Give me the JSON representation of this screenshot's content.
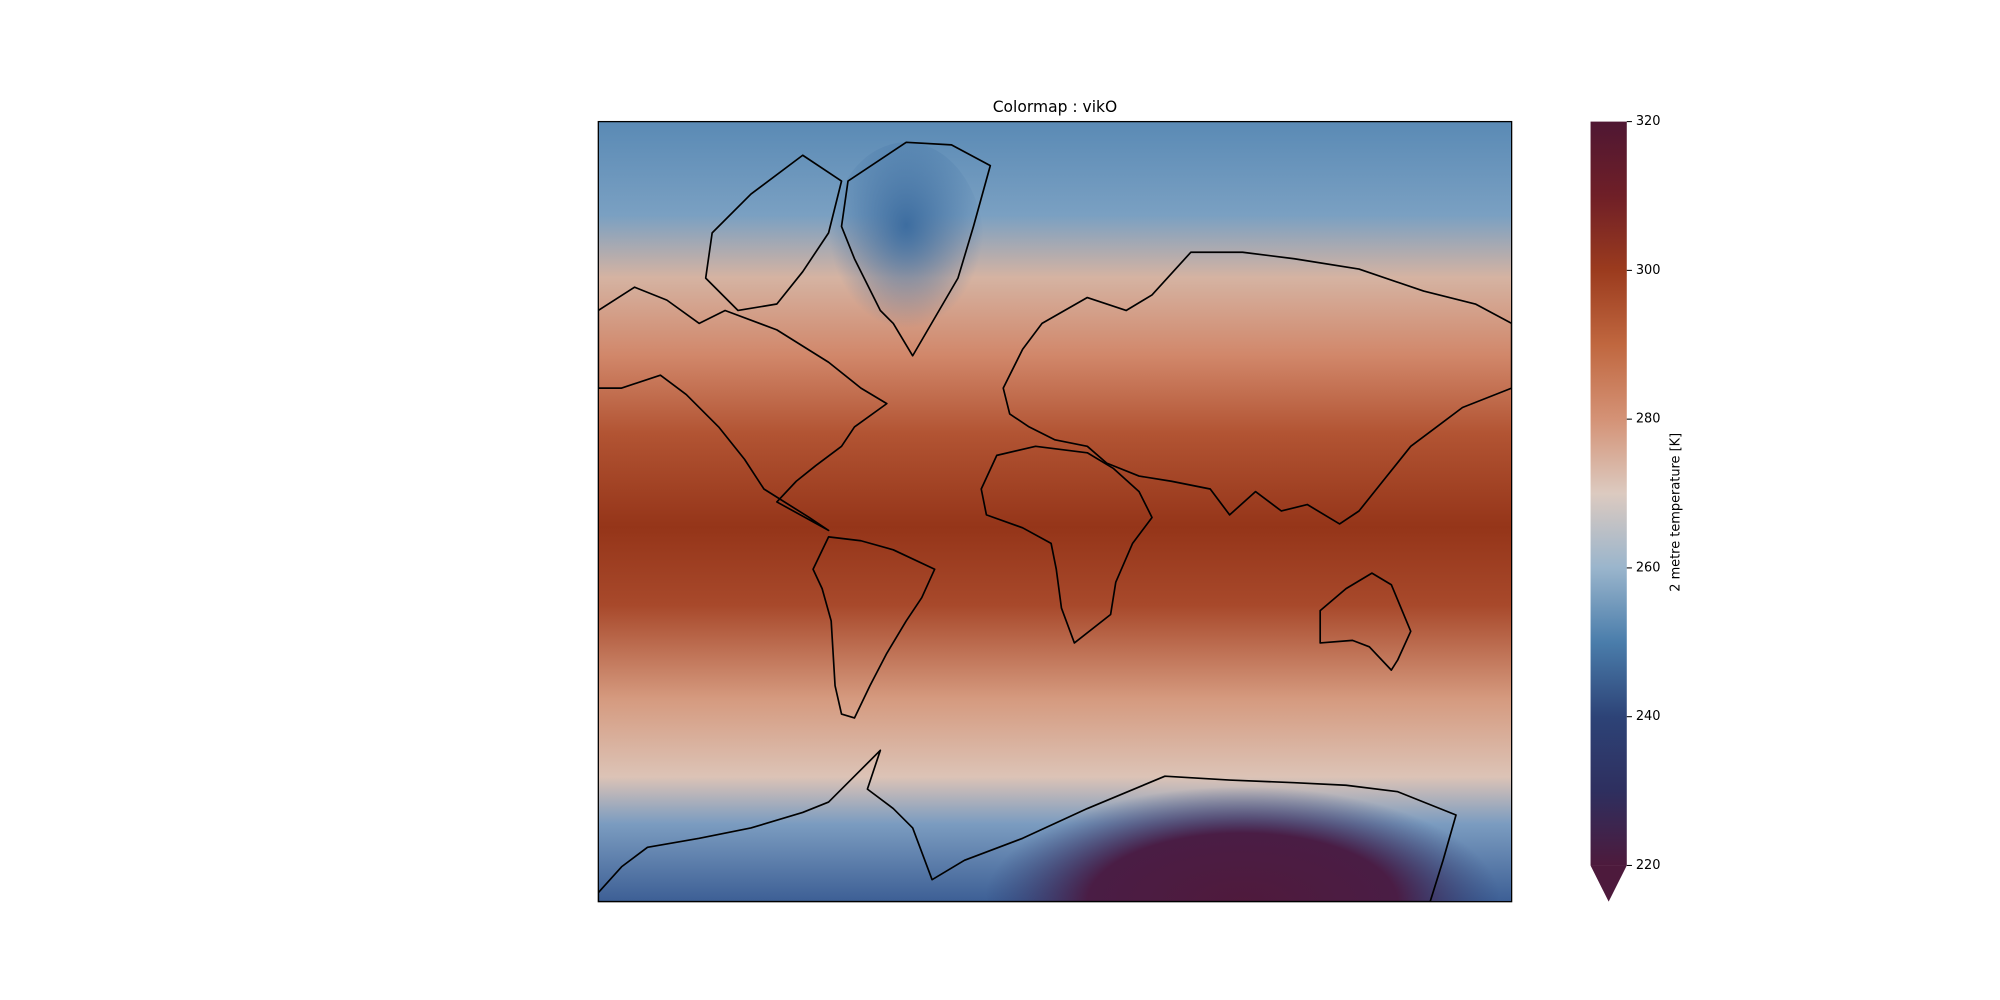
{
  "title": "Colormap : vikO",
  "colorbar": {
    "label": "2 metre temperature [K]",
    "lim": [
      220,
      320
    ],
    "ticks": [
      220,
      240,
      260,
      280,
      300,
      320
    ],
    "extend": "min",
    "colors": [
      "#4d1a3c",
      "#2e2f5f",
      "#2d4377",
      "#4a7dab",
      "#9ab5cc",
      "#dccac0",
      "#d49276",
      "#c0673f",
      "#9b3b1e",
      "#6f1f27",
      "#4f1733"
    ]
  }
}
